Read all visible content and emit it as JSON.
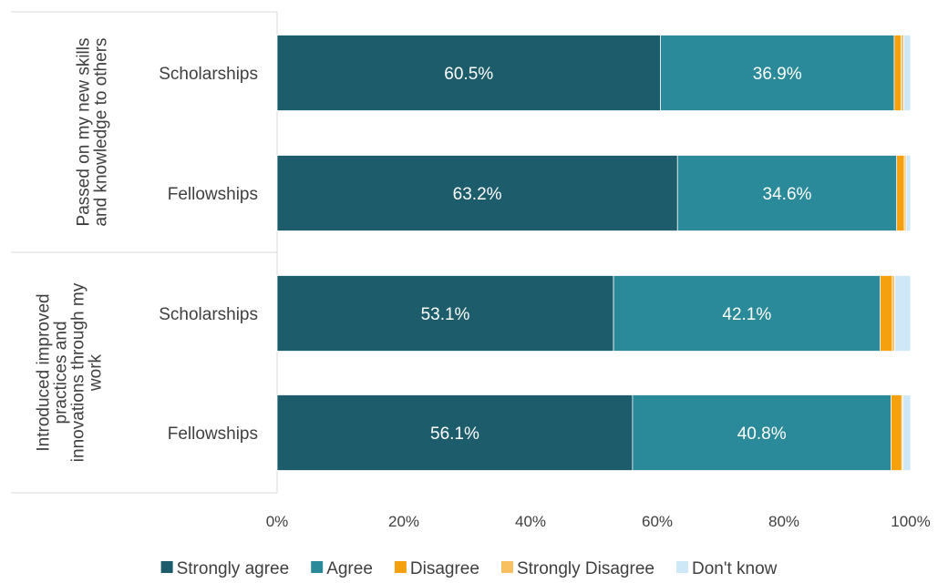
{
  "chart_data": {
    "type": "bar",
    "orientation": "horizontal",
    "stacked": true,
    "groups": [
      {
        "label_lines": [
          "Passed on my new skills",
          "and knowledge to others"
        ],
        "rows": [
          {
            "category": "Scholarships",
            "values": [
              60.5,
              36.9,
              1.1,
              0.4,
              1.1
            ],
            "labels": [
              "60.5%",
              "36.9%",
              "",
              "",
              ""
            ]
          },
          {
            "category": "Fellowships",
            "values": [
              63.2,
              34.6,
              1.2,
              0.3,
              0.7
            ],
            "labels": [
              "63.2%",
              "34.6%",
              "",
              "",
              ""
            ]
          }
        ]
      },
      {
        "label_lines": [
          "Introduced improved",
          "practices and",
          "innovations through my",
          "work"
        ],
        "rows": [
          {
            "category": "Scholarships",
            "values": [
              53.1,
              42.1,
              1.9,
              0.4,
              2.5
            ],
            "labels": [
              "53.1%",
              "42.1%",
              "",
              "",
              ""
            ]
          },
          {
            "category": "Fellowships",
            "values": [
              56.1,
              40.8,
              1.7,
              0.2,
              1.2
            ],
            "labels": [
              "56.1%",
              "40.8%",
              "",
              "",
              ""
            ]
          }
        ]
      }
    ],
    "series": [
      {
        "name": "Strongly agree",
        "color": "#1d5c6b"
      },
      {
        "name": "Agree",
        "color": "#2a8a9a"
      },
      {
        "name": "Disagree",
        "color": "#f5a00f"
      },
      {
        "name": "Strongly Disagree",
        "color": "#f8c060"
      },
      {
        "name": "Don't know",
        "color": "#cfe8f8"
      }
    ],
    "xlim": [
      0,
      100
    ],
    "xticks": [
      "0%",
      "20%",
      "40%",
      "60%",
      "80%",
      "100%"
    ],
    "grid": false,
    "legend_position": "bottom"
  }
}
